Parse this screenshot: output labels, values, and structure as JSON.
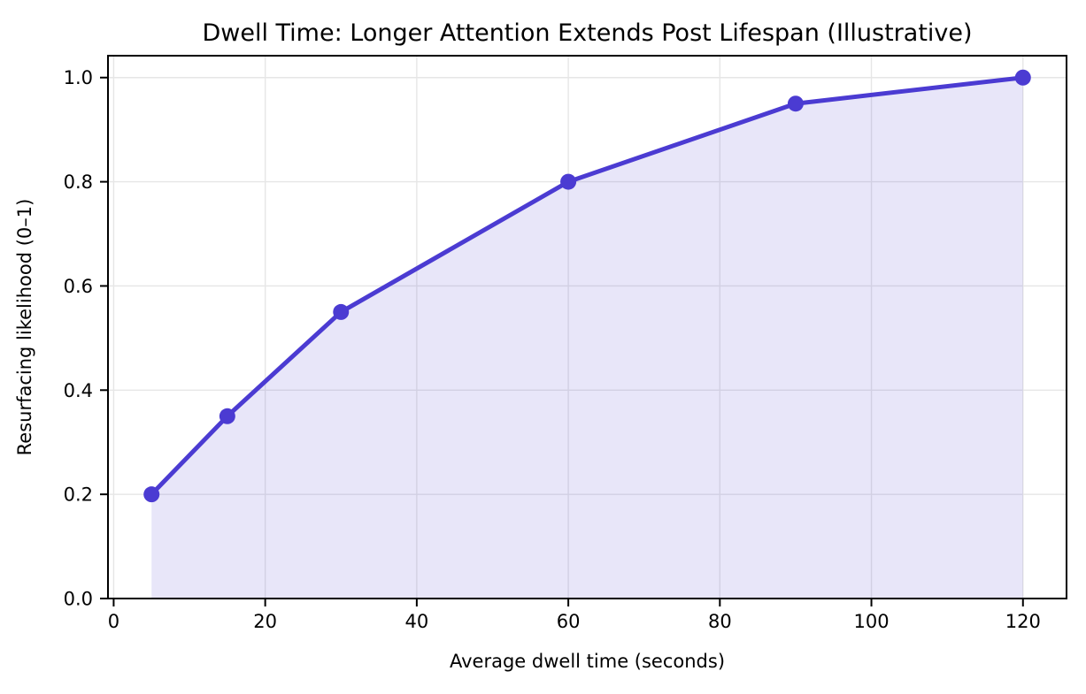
{
  "chart_data": {
    "type": "area",
    "title": "Dwell Time: Longer Attention Extends Post Lifespan (Illustrative)",
    "xlabel": "Average dwell time (seconds)",
    "ylabel": "Resurfacing likelihood (0–1)",
    "x": [
      5,
      15,
      30,
      60,
      90,
      120
    ],
    "y": [
      0.2,
      0.35,
      0.55,
      0.8,
      0.95,
      1.0
    ],
    "series_name": "Resurfacing likelihood",
    "xlim": [
      -0.75,
      125.75
    ],
    "ylim": [
      0,
      1.042
    ],
    "xticks": [
      0,
      20,
      40,
      60,
      80,
      100,
      120
    ],
    "xtick_labels": [
      "0",
      "20",
      "40",
      "60",
      "80",
      "100",
      "120"
    ],
    "yticks": [
      0.0,
      0.2,
      0.4,
      0.6,
      0.8,
      1.0
    ],
    "ytick_labels": [
      "0.0",
      "0.2",
      "0.4",
      "0.6",
      "0.8",
      "1.0"
    ],
    "grid": true,
    "legend": "none",
    "baseline": 0,
    "line_color": "#4b3bd2",
    "fill_color": "rgba(75,59,210,0.13)",
    "grid_color": "#e6e6e6",
    "spine_color": "#000000",
    "marker": "circle",
    "marker_radius": 9,
    "line_width": 5
  }
}
